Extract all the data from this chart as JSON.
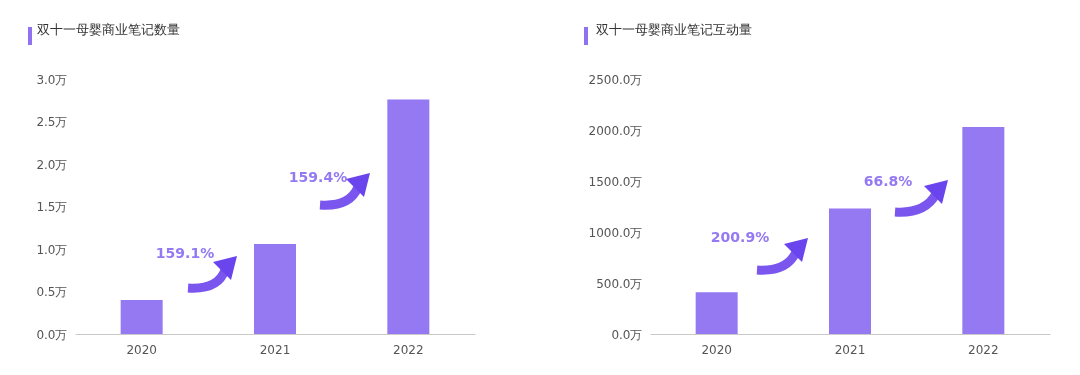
{
  "chart_data": [
    {
      "type": "bar",
      "title": "双十一母婴商业笔记数量",
      "categories": [
        "2020",
        "2021",
        "2022"
      ],
      "values": [
        0.4,
        1.06,
        2.76
      ],
      "color": "#9479f3",
      "ylim": [
        0,
        3
      ],
      "yticks": [
        {
          "value": 0,
          "label": "0.0万"
        },
        {
          "value": 0.5,
          "label": "0.5万"
        },
        {
          "value": 1,
          "label": "1.0万"
        },
        {
          "value": 1.5,
          "label": "1.5万"
        },
        {
          "value": 2,
          "label": "2.0万"
        },
        {
          "value": 2.5,
          "label": "2.5万"
        },
        {
          "value": 3,
          "label": "3.0万"
        }
      ],
      "grid": false,
      "annotations": [
        "159.1%",
        "159.4%"
      ]
    },
    {
      "type": "bar",
      "title": "双十一母婴商业笔记互动量",
      "categories": [
        "2020",
        "2021",
        "2022"
      ],
      "values": [
        410,
        1230,
        2030
      ],
      "color": "#9479f3",
      "ylim": [
        0,
        2500
      ],
      "yticks": [
        {
          "value": 0,
          "label": "0.0万"
        },
        {
          "value": 500,
          "label": "500.0万"
        },
        {
          "value": 1000,
          "label": "1000.0万"
        },
        {
          "value": 1500,
          "label": "1500.0万"
        },
        {
          "value": 2000,
          "label": "2000.0万"
        },
        {
          "value": 2500,
          "label": "2500.0万"
        }
      ],
      "grid": false,
      "annotations": [
        "200.9%",
        "66.8%"
      ]
    }
  ]
}
